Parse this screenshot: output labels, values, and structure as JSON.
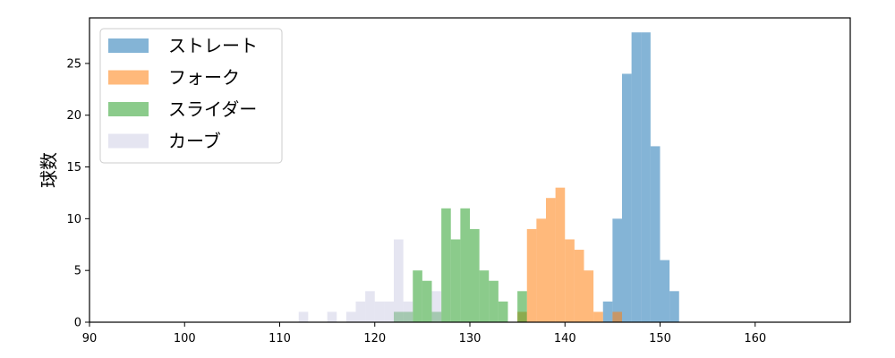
{
  "chart_data": {
    "type": "bar",
    "title": "",
    "xlabel": "",
    "ylabel": "球数",
    "xlim": [
      90,
      170
    ],
    "ylim": [
      0,
      29.4
    ],
    "x_ticks": [
      90,
      100,
      110,
      120,
      130,
      140,
      150,
      160
    ],
    "y_ticks": [
      0,
      5,
      10,
      15,
      20,
      25
    ],
    "grid": false,
    "legend_position": "upper-left",
    "bin_width": 1,
    "series": [
      {
        "name": "ストレート",
        "color": "#1f77b4",
        "bins": [
          [
            144,
            2
          ],
          [
            145,
            10
          ],
          [
            146,
            24
          ],
          [
            147,
            28
          ],
          [
            148,
            28
          ],
          [
            149,
            17
          ],
          [
            150,
            6
          ],
          [
            151,
            3
          ]
        ]
      },
      {
        "name": "フォーク",
        "color": "#ff7f0e",
        "bins": [
          [
            135,
            1
          ],
          [
            136,
            9
          ],
          [
            137,
            10
          ],
          [
            138,
            12
          ],
          [
            139,
            13
          ],
          [
            140,
            8
          ],
          [
            141,
            7
          ],
          [
            142,
            5
          ],
          [
            143,
            1
          ],
          [
            145,
            1
          ]
        ]
      },
      {
        "name": "スライダー",
        "color": "#2ca02c",
        "bins": [
          [
            122,
            1
          ],
          [
            123,
            1
          ],
          [
            124,
            5
          ],
          [
            125,
            4
          ],
          [
            126,
            1
          ],
          [
            127,
            11
          ],
          [
            128,
            8
          ],
          [
            129,
            11
          ],
          [
            130,
            9
          ],
          [
            131,
            5
          ],
          [
            132,
            4
          ],
          [
            133,
            2
          ],
          [
            135,
            3
          ]
        ]
      },
      {
        "name": "カーブ",
        "color": "#c5c5e0",
        "bins": [
          [
            112,
            1
          ],
          [
            115,
            1
          ],
          [
            117,
            1
          ],
          [
            118,
            2
          ],
          [
            119,
            3
          ],
          [
            120,
            2
          ],
          [
            121,
            2
          ],
          [
            122,
            8
          ],
          [
            123,
            2
          ],
          [
            126,
            3
          ]
        ]
      }
    ]
  }
}
